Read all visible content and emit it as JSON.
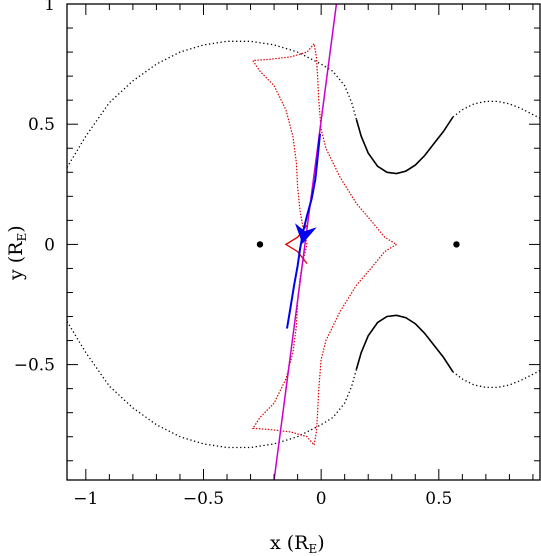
{
  "chart_data": {
    "type": "scatter",
    "xlabel": "x (R",
    "xlabel_sub": "E",
    "xlabel_close": ")",
    "ylabel": "y (R",
    "ylabel_sub": "E",
    "ylabel_close": ")",
    "xlim": [
      -1.08,
      0.93
    ],
    "ylim": [
      -0.98,
      1.0
    ],
    "x_ticks": [
      {
        "value": -1,
        "label": "−1"
      },
      {
        "value": -0.5,
        "label": "−0.5"
      },
      {
        "value": 0,
        "label": "0"
      },
      {
        "value": 0.5,
        "label": "0.5"
      }
    ],
    "y_ticks": [
      {
        "value": -0.5,
        "label": "−0.5"
      },
      {
        "value": 0,
        "label": "0"
      },
      {
        "value": 0.5,
        "label": "0.5"
      },
      {
        "value": 1,
        "label": "1"
      }
    ],
    "x_minor_step": 0.1,
    "y_minor_step": 0.1,
    "grid": false,
    "colors": {
      "critical_curve": "#000000",
      "caustic": "#dd0000",
      "trajectory": "#cc00cc",
      "source_path": "#0000ee",
      "lens": "#000000"
    },
    "lenses": [
      {
        "x": -0.26,
        "y": 0.0
      },
      {
        "x": 0.575,
        "y": 0.0
      }
    ],
    "critical_outer_left": [
      [
        -1.08,
        0.32
      ],
      [
        -1.0,
        0.45
      ],
      [
        -0.9,
        0.59
      ],
      [
        -0.8,
        0.68
      ],
      [
        -0.7,
        0.75
      ],
      [
        -0.6,
        0.8
      ],
      [
        -0.5,
        0.83
      ],
      [
        -0.4,
        0.845
      ],
      [
        -0.3,
        0.845
      ],
      [
        -0.2,
        0.83
      ],
      [
        -0.1,
        0.8
      ],
      [
        0.0,
        0.75
      ],
      [
        0.05,
        0.72
      ],
      [
        0.1,
        0.66
      ],
      [
        0.13,
        0.59
      ],
      [
        0.15,
        0.52
      ]
    ],
    "critical_inner_top": [
      [
        0.15,
        0.52
      ],
      [
        0.17,
        0.45
      ],
      [
        0.2,
        0.38
      ],
      [
        0.24,
        0.325
      ],
      [
        0.28,
        0.3
      ],
      [
        0.32,
        0.295
      ],
      [
        0.36,
        0.305
      ],
      [
        0.4,
        0.33
      ],
      [
        0.44,
        0.37
      ],
      [
        0.48,
        0.42
      ],
      [
        0.52,
        0.47
      ],
      [
        0.56,
        0.53
      ]
    ],
    "critical_outer_right_top": [
      [
        0.56,
        0.53
      ],
      [
        0.6,
        0.56
      ],
      [
        0.65,
        0.585
      ],
      [
        0.7,
        0.595
      ],
      [
        0.75,
        0.595
      ],
      [
        0.8,
        0.585
      ],
      [
        0.85,
        0.565
      ],
      [
        0.93,
        0.525
      ]
    ],
    "critical_outer_right_bottom": [
      [
        0.93,
        -0.525
      ],
      [
        0.85,
        -0.565
      ],
      [
        0.8,
        -0.585
      ],
      [
        0.75,
        -0.595
      ],
      [
        0.7,
        -0.595
      ],
      [
        0.65,
        -0.585
      ],
      [
        0.6,
        -0.56
      ],
      [
        0.56,
        -0.53
      ]
    ],
    "critical_inner_bottom": [
      [
        0.56,
        -0.53
      ],
      [
        0.52,
        -0.47
      ],
      [
        0.48,
        -0.42
      ],
      [
        0.44,
        -0.37
      ],
      [
        0.4,
        -0.33
      ],
      [
        0.36,
        -0.305
      ],
      [
        0.32,
        -0.295
      ],
      [
        0.28,
        -0.3
      ],
      [
        0.24,
        -0.325
      ],
      [
        0.2,
        -0.38
      ],
      [
        0.17,
        -0.45
      ],
      [
        0.15,
        -0.52
      ]
    ],
    "critical_outer_left_bottom": [
      [
        0.15,
        -0.52
      ],
      [
        0.13,
        -0.59
      ],
      [
        0.1,
        -0.66
      ],
      [
        0.05,
        -0.72
      ],
      [
        0.0,
        -0.75
      ],
      [
        -0.1,
        -0.8
      ],
      [
        -0.2,
        -0.83
      ],
      [
        -0.3,
        -0.845
      ],
      [
        -0.4,
        -0.845
      ],
      [
        -0.5,
        -0.83
      ],
      [
        -0.6,
        -0.8
      ],
      [
        -0.7,
        -0.75
      ],
      [
        -0.8,
        -0.68
      ],
      [
        -0.9,
        -0.59
      ],
      [
        -1.0,
        -0.45
      ],
      [
        -1.08,
        -0.32
      ]
    ],
    "caustic_top": [
      [
        -0.06,
        0.0
      ],
      [
        -0.075,
        0.06
      ],
      [
        -0.09,
        0.14
      ],
      [
        -0.1,
        0.24
      ],
      [
        -0.105,
        0.34
      ],
      [
        -0.12,
        0.45
      ],
      [
        -0.15,
        0.56
      ],
      [
        -0.2,
        0.66
      ],
      [
        -0.26,
        0.72
      ],
      [
        -0.29,
        0.765
      ],
      [
        -0.22,
        0.77
      ],
      [
        -0.13,
        0.78
      ],
      [
        -0.06,
        0.8
      ],
      [
        -0.03,
        0.835
      ],
      [
        -0.02,
        0.78
      ],
      [
        -0.015,
        0.7
      ],
      [
        -0.01,
        0.6
      ],
      [
        0.0,
        0.48
      ],
      [
        0.02,
        0.4
      ],
      [
        0.08,
        0.28
      ],
      [
        0.15,
        0.17
      ],
      [
        0.22,
        0.09
      ],
      [
        0.27,
        0.03
      ],
      [
        0.32,
        0.0
      ]
    ],
    "caustic_bottom": [
      [
        0.32,
        0.0
      ],
      [
        0.27,
        -0.03
      ],
      [
        0.22,
        -0.09
      ],
      [
        0.15,
        -0.17
      ],
      [
        0.08,
        -0.28
      ],
      [
        0.02,
        -0.4
      ],
      [
        0.0,
        -0.48
      ],
      [
        -0.01,
        -0.6
      ],
      [
        -0.015,
        -0.7
      ],
      [
        -0.02,
        -0.78
      ],
      [
        -0.03,
        -0.835
      ],
      [
        -0.06,
        -0.8
      ],
      [
        -0.13,
        -0.78
      ],
      [
        -0.22,
        -0.77
      ],
      [
        -0.29,
        -0.765
      ],
      [
        -0.26,
        -0.72
      ],
      [
        -0.2,
        -0.66
      ],
      [
        -0.15,
        -0.56
      ],
      [
        -0.12,
        -0.45
      ],
      [
        -0.105,
        -0.34
      ],
      [
        -0.1,
        -0.24
      ],
      [
        -0.09,
        -0.14
      ],
      [
        -0.075,
        -0.06
      ],
      [
        -0.06,
        0.0
      ]
    ],
    "caustic_left_cusp": [
      [
        -0.06,
        0.08
      ],
      [
        -0.1,
        0.03
      ],
      [
        -0.15,
        0.0
      ],
      [
        -0.1,
        -0.03
      ],
      [
        -0.06,
        -0.08
      ]
    ],
    "trajectory": [
      [
        -0.2,
        -0.98
      ],
      [
        0.065,
        1.0
      ]
    ],
    "source_path": [
      [
        -0.005,
        0.46
      ],
      [
        -0.015,
        0.36
      ],
      [
        -0.025,
        0.27
      ],
      [
        -0.04,
        0.19
      ],
      [
        -0.06,
        0.12
      ],
      [
        -0.075,
        0.06
      ],
      [
        -0.09,
        -0.02
      ],
      [
        -0.1,
        -0.09
      ],
      [
        -0.115,
        -0.17
      ],
      [
        -0.13,
        -0.26
      ],
      [
        -0.145,
        -0.35
      ]
    ],
    "arrow": {
      "x": -0.065,
      "y": 0.08,
      "direction_to": [
        -0.08,
        0.0
      ]
    }
  }
}
